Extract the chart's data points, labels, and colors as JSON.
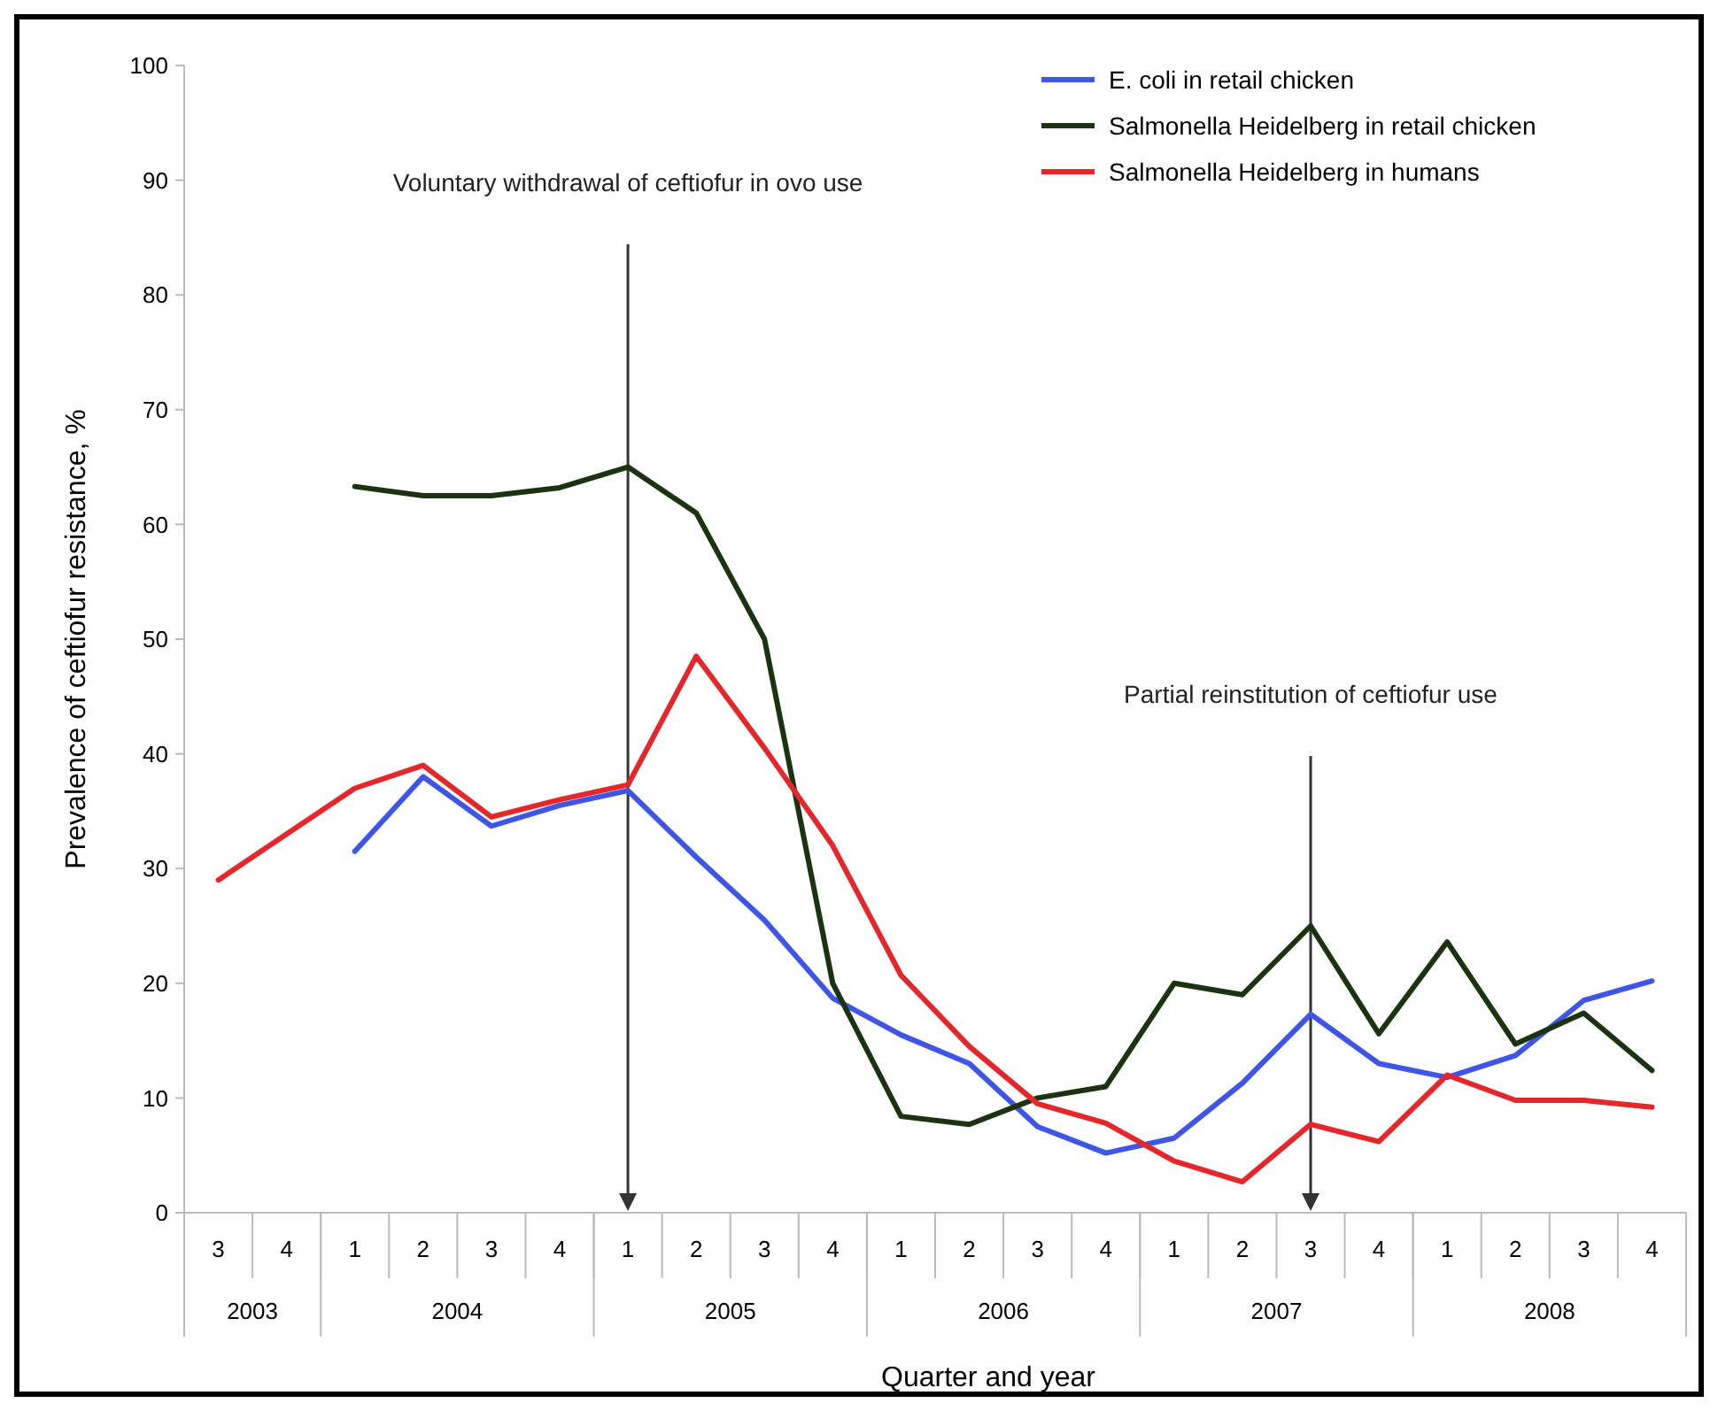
{
  "chart_data": {
    "type": "line",
    "xlabel": "Quarter and year",
    "ylabel": "Prevalence of ceftiofur resistance, %",
    "categories": [
      "3",
      "4",
      "1",
      "2",
      "3",
      "4",
      "1",
      "2",
      "3",
      "4",
      "1",
      "2",
      "3",
      "4",
      "1",
      "2",
      "3",
      "4",
      "1",
      "2",
      "3",
      "4"
    ],
    "annotations": [
      "Voluntary withdrawal of ceftiofur in ovo use",
      "Partial reinstitution of ceftiofur use",
      "2003",
      "2004",
      "2005",
      "2006",
      "2007",
      "2008"
    ],
    "ylim": [
      0,
      100
    ],
    "yticks": [
      0,
      10,
      20,
      30,
      40,
      50,
      60,
      70,
      80,
      90,
      100
    ],
    "series": [
      {
        "name": "E. coli in retail chicken",
        "color": "#3e55e8",
        "values": [
          null,
          null,
          31.5,
          38,
          33.7,
          35.5,
          36.8,
          31,
          25.5,
          18.7,
          15.5,
          13,
          7.5,
          5.2,
          6.5,
          11.3,
          17.3,
          13,
          11.8,
          13.7,
          18.5,
          20.2
        ]
      },
      {
        "name": "Salmonella Heidelberg in retail chicken",
        "color": "#1c3311",
        "values": [
          null,
          null,
          63.3,
          62.5,
          62.5,
          63.2,
          65,
          61,
          50,
          20,
          8.4,
          7.7,
          10,
          11,
          20,
          19,
          25,
          15.6,
          23.6,
          14.7,
          17.4,
          12.4
        ]
      },
      {
        "name": "Salmonella Heidelberg in humans",
        "color": "#e5262a",
        "values": [
          29,
          33,
          37,
          39,
          34.5,
          36,
          37.3,
          48.5,
          40.5,
          32,
          20.7,
          14.5,
          9.5,
          7.8,
          4.5,
          2.7,
          7.7,
          6.2,
          12,
          9.8,
          9.8,
          9.2
        ]
      }
    ],
    "legend": "top right"
  }
}
